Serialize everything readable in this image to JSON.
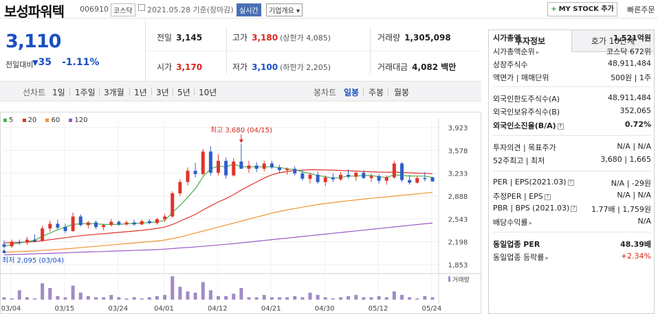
{
  "header": {
    "name": "보성파워텍",
    "code": "006910",
    "market": "코스닥",
    "date": "2021.05.28  기준(장마감)",
    "realtime": "실시간",
    "company_info": "기업개요",
    "my_stock": "MY STOCK 추가",
    "quick_order": "빠른주문"
  },
  "price": {
    "current": "3,110",
    "change_label": "전일대비",
    "change_abs": "35",
    "change_pct": "-1.11%",
    "prev_label": "전일",
    "prev": "3,145",
    "high_label": "고가",
    "high": "3,180",
    "upper_limit": "(상한가 4,085)",
    "volume_label": "거래량",
    "volume": "1,305,098",
    "open_label": "시가",
    "open": "3,170",
    "low_label": "저가",
    "low": "3,100",
    "lower_limit": "(하한가 2,205)",
    "amount_label": "거래대금",
    "amount": "4,082 백만"
  },
  "periods": {
    "line_label": "선차트",
    "items": [
      "1일",
      "1주일",
      "3개월",
      "1년",
      "3년",
      "5년",
      "10년"
    ],
    "candle_label": "봉차트",
    "candles": [
      "일봉",
      "주봉",
      "월봉"
    ],
    "active_candle": "일봉"
  },
  "chart_data": {
    "type": "candlestick",
    "legend": [
      "5",
      "20",
      "60",
      "120"
    ],
    "colors": {
      "up": "#e0342a",
      "down": "#2f5fc9",
      "ma5": "#4caf50",
      "ma20": "#e0342a",
      "ma60": "#f0932e",
      "ma120": "#9b59c6",
      "volume": "#a08bc7"
    },
    "y_ticks": [
      "3,923",
      "3,578",
      "3,233",
      "2,888",
      "2,543",
      "2,198",
      "1,853"
    ],
    "y_range": [
      1853,
      3923
    ],
    "x_labels": [
      "03/04",
      "03/15",
      "03/24",
      "04/01",
      "04/12",
      "04/21",
      "04/30",
      "05/12",
      "05/24"
    ],
    "x_label_index": [
      0,
      7,
      14,
      20,
      27,
      34,
      41,
      48,
      55
    ],
    "high_annotation": "최고 3,680 (04/15)",
    "low_annotation": "최저 2,095 (03/04)",
    "volume_label": "거래량",
    "candles": [
      [
        2160,
        2220,
        2095,
        2125
      ],
      [
        2130,
        2230,
        2110,
        2200
      ],
      [
        2195,
        2230,
        2150,
        2180
      ],
      [
        2185,
        2270,
        2150,
        2230
      ],
      [
        2230,
        2310,
        2190,
        2205
      ],
      [
        2210,
        2440,
        2200,
        2400
      ],
      [
        2400,
        2520,
        2350,
        2470
      ],
      [
        2470,
        2530,
        2380,
        2410
      ],
      [
        2420,
        2470,
        2330,
        2360
      ],
      [
        2360,
        2640,
        2350,
        2580
      ],
      [
        2580,
        2610,
        2430,
        2450
      ],
      [
        2450,
        2510,
        2400,
        2490
      ],
      [
        2490,
        2520,
        2390,
        2420
      ],
      [
        2420,
        2470,
        2370,
        2450
      ],
      [
        2450,
        2540,
        2430,
        2500
      ],
      [
        2500,
        2520,
        2440,
        2460
      ],
      [
        2460,
        2520,
        2440,
        2490
      ],
      [
        2490,
        2530,
        2440,
        2460
      ],
      [
        2460,
        2530,
        2450,
        2510
      ],
      [
        2510,
        2540,
        2460,
        2480
      ],
      [
        2480,
        2560,
        2460,
        2540
      ],
      [
        2540,
        2620,
        2500,
        2580
      ],
      [
        2580,
        2960,
        2560,
        2930
      ],
      [
        2930,
        3140,
        2890,
        3100
      ],
      [
        3100,
        3320,
        3050,
        3270
      ],
      [
        3270,
        3390,
        3170,
        3220
      ],
      [
        3220,
        3600,
        3200,
        3560
      ],
      [
        3560,
        3640,
        3200,
        3240
      ],
      [
        3240,
        3520,
        3200,
        3420
      ],
      [
        3420,
        3470,
        3150,
        3200
      ],
      [
        3200,
        3460,
        3180,
        3410
      ],
      [
        3410,
        3680,
        3300,
        3300
      ],
      [
        3300,
        3420,
        3240,
        3350
      ],
      [
        3350,
        3400,
        3250,
        3300
      ],
      [
        3300,
        3420,
        3260,
        3380
      ],
      [
        3380,
        3420,
        3300,
        3320
      ],
      [
        3320,
        3360,
        3240,
        3280
      ],
      [
        3280,
        3320,
        3210,
        3300
      ],
      [
        3300,
        3340,
        3200,
        3230
      ],
      [
        3230,
        3280,
        3120,
        3150
      ],
      [
        3150,
        3240,
        3080,
        3210
      ],
      [
        3210,
        3260,
        3070,
        3100
      ],
      [
        3100,
        3200,
        3040,
        3170
      ],
      [
        3170,
        3230,
        3100,
        3140
      ],
      [
        3140,
        3250,
        3120,
        3210
      ],
      [
        3210,
        3290,
        3150,
        3180
      ],
      [
        3180,
        3270,
        3120,
        3240
      ],
      [
        3240,
        3280,
        3150,
        3160
      ],
      [
        3160,
        3230,
        3100,
        3190
      ],
      [
        3190,
        3220,
        3080,
        3120
      ],
      [
        3120,
        3200,
        3060,
        3170
      ],
      [
        3170,
        3420,
        3150,
        3380
      ],
      [
        3380,
        3400,
        3100,
        3130
      ],
      [
        3130,
        3210,
        3060,
        3090
      ],
      [
        3090,
        3190,
        3080,
        3160
      ],
      [
        3160,
        3250,
        3110,
        3145
      ],
      [
        3170,
        3180,
        3100,
        3110
      ]
    ],
    "ma5": [
      2125,
      2160,
      2180,
      2200,
      2220,
      2280,
      2330,
      2380,
      2420,
      2460,
      2470,
      2470,
      2470,
      2460,
      2460,
      2460,
      2470,
      2475,
      2480,
      2490,
      2500,
      2520,
      2640,
      2750,
      2870,
      3000,
      3180,
      3300,
      3340,
      3330,
      3370,
      3330,
      3330,
      3330,
      3330,
      3330,
      3320,
      3300,
      3290,
      3250,
      3230,
      3200,
      3180,
      3160,
      3170,
      3190,
      3190,
      3200,
      3200,
      3180,
      3170,
      3210,
      3200,
      3190,
      3190,
      3190,
      3170
    ],
    "ma20": [
      2180,
      2185,
      2190,
      2195,
      2200,
      2215,
      2230,
      2245,
      2260,
      2275,
      2290,
      2300,
      2310,
      2320,
      2330,
      2340,
      2350,
      2360,
      2370,
      2385,
      2400,
      2420,
      2460,
      2510,
      2560,
      2610,
      2680,
      2740,
      2800,
      2850,
      2910,
      2980,
      3040,
      3100,
      3160,
      3210,
      3240,
      3260,
      3275,
      3280,
      3285,
      3285,
      3282,
      3280,
      3275,
      3270,
      3265,
      3260,
      3255,
      3250,
      3248,
      3250,
      3245,
      3240,
      3235,
      3232,
      3225
    ],
    "ma60": [
      2040,
      2045,
      2050,
      2055,
      2060,
      2068,
      2075,
      2082,
      2090,
      2100,
      2110,
      2120,
      2130,
      2140,
      2150,
      2160,
      2170,
      2180,
      2190,
      2200,
      2210,
      2225,
      2245,
      2270,
      2300,
      2330,
      2360,
      2390,
      2420,
      2450,
      2480,
      2510,
      2540,
      2570,
      2600,
      2630,
      2655,
      2680,
      2700,
      2720,
      2740,
      2760,
      2775,
      2790,
      2805,
      2818,
      2830,
      2842,
      2855,
      2865,
      2875,
      2888,
      2900,
      2910,
      2920,
      2932,
      2945
    ],
    "ma120": [
      2000,
      2004,
      2008,
      2012,
      2016,
      2020,
      2024,
      2028,
      2032,
      2036,
      2040,
      2044,
      2048,
      2052,
      2056,
      2060,
      2064,
      2068,
      2072,
      2076,
      2080,
      2088,
      2096,
      2104,
      2112,
      2120,
      2130,
      2140,
      2150,
      2160,
      2170,
      2182,
      2194,
      2206,
      2218,
      2230,
      2242,
      2254,
      2266,
      2278,
      2290,
      2302,
      2314,
      2326,
      2338,
      2350,
      2362,
      2374,
      2386,
      2398,
      2410,
      2422,
      2434,
      2446,
      2458,
      2470,
      2480
    ],
    "volumes": [
      0.1,
      0.05,
      0.4,
      0.1,
      0.05,
      0.7,
      0.5,
      0.15,
      0.1,
      0.6,
      0.3,
      0.15,
      0.1,
      0.1,
      0.2,
      0.1,
      0.05,
      0.1,
      0.05,
      0.1,
      0.15,
      0.2,
      1.0,
      0.55,
      0.35,
      0.3,
      0.75,
      0.4,
      0.15,
      0.15,
      0.25,
      0.5,
      0.1,
      0.1,
      0.2,
      0.1,
      0.1,
      0.1,
      0.15,
      0.1,
      0.3,
      0.2,
      0.1,
      0.05,
      0.1,
      0.15,
      0.2,
      0.1,
      0.1,
      0.15,
      0.1,
      0.35,
      0.2,
      0.1,
      0.05,
      0.15,
      0.1
    ]
  },
  "invest": {
    "tab1": "투자정보",
    "tab2": "호가 10단계",
    "rows": [
      {
        "label": "시가총액",
        "value": "1,521억원",
        "bold": true
      },
      {
        "label": "시가총액순위",
        "value": "코스닥 672위"
      },
      {
        "label": "상장주식수",
        "value": "48,911,484"
      },
      {
        "label": "액면가 | 매매단위",
        "value": "500원 | 1주"
      },
      {
        "label": "외국인한도주식수(A)",
        "value": "48,911,484"
      },
      {
        "label": "외국인보유주식수(B)",
        "value": "352,065"
      },
      {
        "label": "외국인소진율(B/A)",
        "value": "0.72%",
        "bold": true
      },
      {
        "label": "투자의견 | 목표주가",
        "value": "N/A | N/A"
      },
      {
        "label": "52주최고 | 최저",
        "value": "3,680 | 1,665"
      },
      {
        "label": "PER | EPS(2021.03)",
        "value": "N/A | -29원"
      },
      {
        "label": "추정PER | EPS",
        "value": "N/A | N/A"
      },
      {
        "label": "PBR | BPS (2021.03)",
        "value": "1.77배 | 1,759원"
      },
      {
        "label": "배당수익률",
        "value": "N/A"
      },
      {
        "label": "동일업종 PER",
        "value": "48.39배",
        "bold": true
      },
      {
        "label": "동일업종 등락률",
        "value": "+2.34%"
      }
    ]
  }
}
